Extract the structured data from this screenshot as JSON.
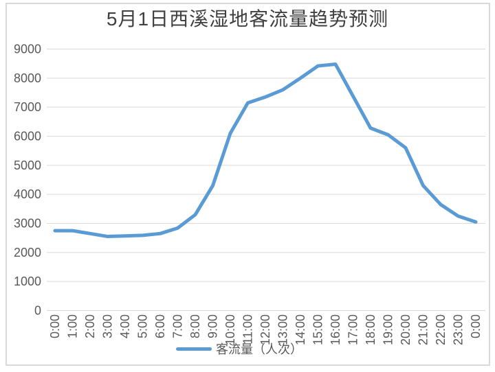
{
  "page": {
    "background": "#FFFFFF",
    "border_color": "#D9D9D9"
  },
  "chart_data": {
    "type": "line",
    "title": "5月1日西溪湿地客流量趋势预测",
    "title_color": "#404040",
    "xlabel": "",
    "ylabel": "",
    "x_labels": [
      "0:00",
      "1:00",
      "2:00",
      "3:00",
      "4:00",
      "5:00",
      "6:00",
      "7:00",
      "8:00",
      "9:00",
      "10:00",
      "11:00",
      "12:00",
      "13:00",
      "14:00",
      "15:00",
      "16:00",
      "17:00",
      "18:00",
      "19:00",
      "20:00",
      "21:00",
      "22:00",
      "23:00",
      "0:00"
    ],
    "series": [
      {
        "name": "客流量（人次）",
        "color": "#5B9BD5",
        "values": [
          2750,
          2750,
          2650,
          2550,
          2570,
          2590,
          2650,
          2840,
          3300,
          4300,
          6100,
          7150,
          7350,
          7600,
          8000,
          8420,
          8480,
          7380,
          6280,
          6050,
          5600,
          4300,
          3650,
          3250,
          3050
        ]
      }
    ],
    "ylim": [
      0,
      9000
    ],
    "y_ticks": [
      0,
      1000,
      2000,
      3000,
      4000,
      5000,
      6000,
      7000,
      8000,
      9000
    ],
    "grid": "horizontal",
    "grid_color": "#D9D9D9",
    "tick_label_color": "#595959",
    "line_width": 5,
    "legend_position": "bottom"
  }
}
